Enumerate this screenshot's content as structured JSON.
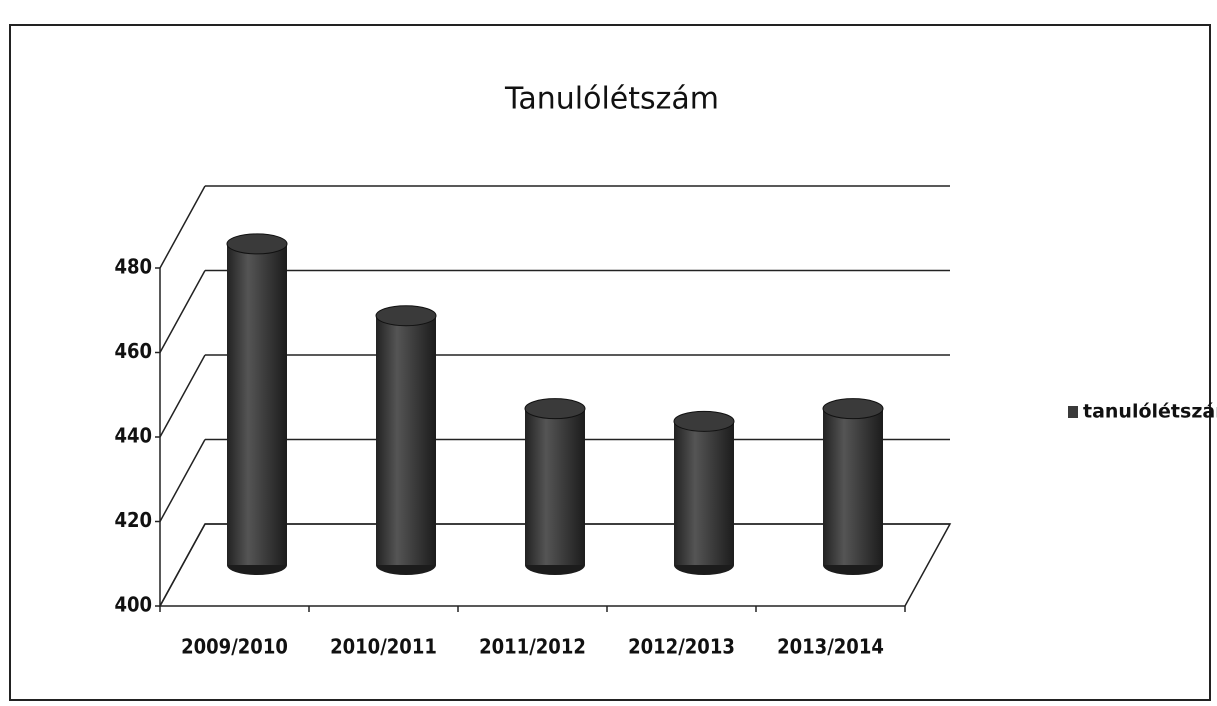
{
  "chart_data": {
    "type": "bar",
    "title": "Tanulólétszám",
    "categories": [
      "2009/2010",
      "2010/2011",
      "2011/2012",
      "2012/2013",
      "2013/2014"
    ],
    "series": [
      {
        "name": "tanulólétszám",
        "color": "#3a3a3a",
        "values": [
          476,
          459,
          437,
          434,
          437
        ]
      }
    ],
    "ylim": [
      400,
      480
    ],
    "yticks": [
      400,
      420,
      440,
      460,
      480
    ],
    "grid": true,
    "legend": "right"
  }
}
